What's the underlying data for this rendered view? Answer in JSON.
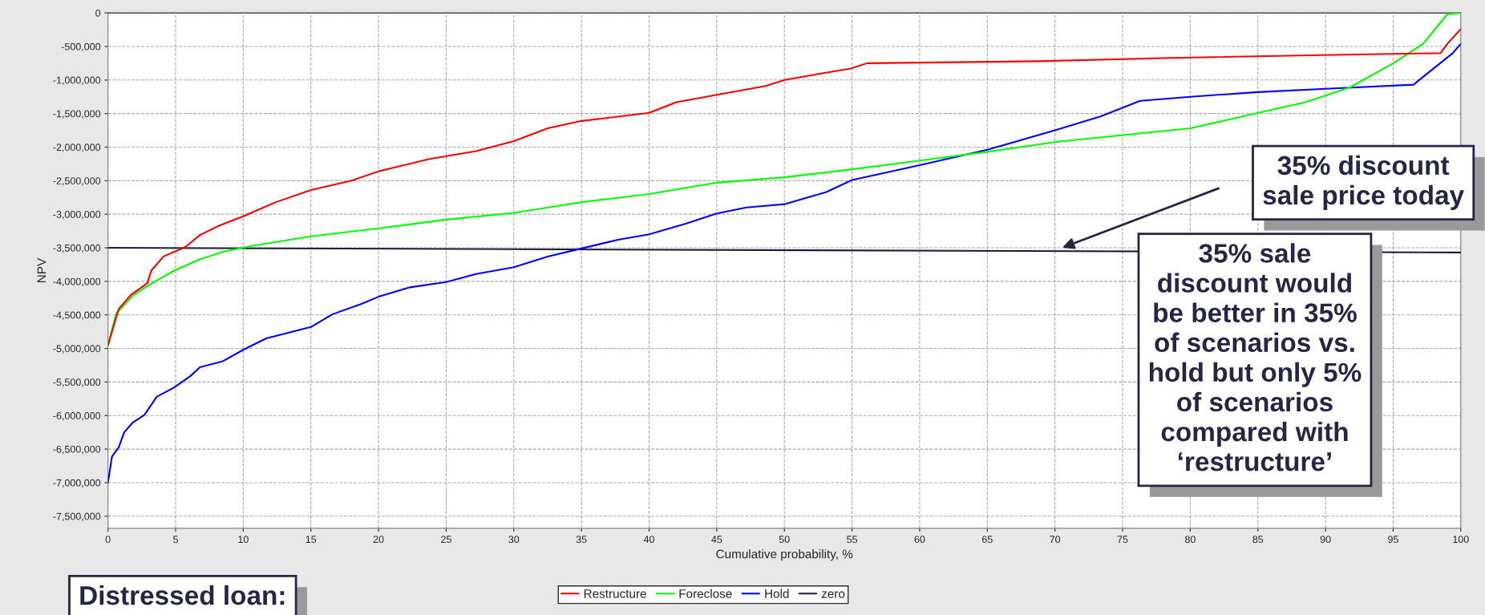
{
  "chart_data": {
    "type": "line",
    "xlabel": "Cumulative probability, %",
    "ylabel": "NPV",
    "xlim": [
      0,
      100
    ],
    "xticks": [
      0,
      5,
      10,
      15,
      20,
      25,
      30,
      35,
      40,
      45,
      50,
      55,
      60,
      65,
      70,
      75,
      80,
      85,
      90,
      95,
      100
    ],
    "ylim": [
      -7680000,
      0
    ],
    "yticks": [
      {
        "value": -7500000,
        "label": "-7,500,000"
      },
      {
        "value": -7000000,
        "label": "-7,000,000"
      },
      {
        "value": -6500000,
        "label": "-6,500,000"
      },
      {
        "value": -6000000,
        "label": "-6,000,000"
      },
      {
        "value": -5500000,
        "label": "-5,500,000"
      },
      {
        "value": -5000000,
        "label": "-5,000,000"
      },
      {
        "value": -4500000,
        "label": "-4,500,000"
      },
      {
        "value": -4000000,
        "label": "-4,000,000"
      },
      {
        "value": -3500000,
        "label": "-3,500,000"
      },
      {
        "value": -3000000,
        "label": "-3,000,000"
      },
      {
        "value": -2500000,
        "label": "-2,500,000"
      },
      {
        "value": -2000000,
        "label": "-2,000,000"
      },
      {
        "value": -1500000,
        "label": "-1,500,000"
      },
      {
        "value": -1000000,
        "label": "-1,000,000"
      },
      {
        "value": -500000,
        "label": "-500,000"
      },
      0
    ],
    "grid": true,
    "legend": "bottom",
    "line_style": "solid",
    "series": [
      {
        "name": "Restructure",
        "color": "#ff0000",
        "x": [
          0,
          0.8,
          1.7,
          2.9,
          3.2,
          4.1,
          5.7,
          6.8,
          8.2,
          10,
          12.4,
          15,
          18,
          20,
          23.7,
          27.2,
          30,
          32.5,
          35,
          40,
          42,
          45,
          48.6,
          50,
          52.5,
          54.9,
          56.1,
          68.7,
          78.5,
          92.1,
          98.5,
          99,
          100
        ],
        "values": [
          -4950000,
          -4410000,
          -4200000,
          -4030000,
          -3840000,
          -3630000,
          -3490000,
          -3310000,
          -3170000,
          -3030000,
          -2820000,
          -2640000,
          -2500000,
          -2360000,
          -2180000,
          -2060000,
          -1910000,
          -1720000,
          -1610000,
          -1490000,
          -1330000,
          -1220000,
          -1090000,
          -1000000,
          -910000,
          -830000,
          -750000,
          -720000,
          -670000,
          -620000,
          -600000,
          -460000,
          -240000
        ]
      },
      {
        "name": "Foreclose",
        "color": "#00ff00",
        "x": [
          0,
          0.6,
          1.9,
          3.3,
          4.9,
          6.8,
          8.5,
          10.7,
          15,
          20,
          25,
          30,
          35,
          40,
          45,
          50,
          55,
          60,
          65,
          70.2,
          80,
          85,
          88.5,
          91.8,
          95,
          97.2,
          99,
          100
        ],
        "values": [
          -4950000,
          -4480000,
          -4200000,
          -4020000,
          -3840000,
          -3670000,
          -3560000,
          -3470000,
          -3330000,
          -3210000,
          -3080000,
          -2980000,
          -2820000,
          -2700000,
          -2530000,
          -2450000,
          -2330000,
          -2200000,
          -2070000,
          -1920000,
          -1720000,
          -1490000,
          -1330000,
          -1110000,
          -750000,
          -460000,
          -20000,
          0
        ]
      },
      {
        "name": "Hold",
        "color": "#0000ff",
        "x": [
          0,
          0.3,
          0.8,
          1.2,
          1.8,
          2.7,
          3.6,
          4.9,
          6.1,
          6.8,
          8.5,
          10,
          11.7,
          15,
          16.6,
          18.7,
          20,
          22.3,
          25,
          27.2,
          30,
          32.5,
          35,
          37.7,
          40,
          42.7,
          45,
          47.2,
          50,
          53.1,
          55,
          60,
          65,
          70,
          73.4,
          76.3,
          80,
          85,
          90,
          96.5,
          97.6,
          99.4,
          100
        ],
        "values": [
          -7000000,
          -6610000,
          -6470000,
          -6250000,
          -6110000,
          -5990000,
          -5720000,
          -5580000,
          -5410000,
          -5280000,
          -5190000,
          -5020000,
          -4850000,
          -4680000,
          -4490000,
          -4340000,
          -4230000,
          -4090000,
          -4010000,
          -3890000,
          -3790000,
          -3630000,
          -3510000,
          -3380000,
          -3300000,
          -3140000,
          -2990000,
          -2900000,
          -2850000,
          -2670000,
          -2490000,
          -2270000,
          -2040000,
          -1750000,
          -1540000,
          -1310000,
          -1250000,
          -1180000,
          -1130000,
          -1070000,
          -890000,
          -600000,
          -460000
        ]
      },
      {
        "name": "zero",
        "color": "#1c1c3c",
        "x": [
          0,
          100
        ],
        "values": [
          -3500000,
          -3570000
        ]
      }
    ],
    "annotations": [
      "35% discount\nsale price today",
      "35% sale\ndiscount would\nbe better in 35%\nof scenarios vs.\nhold but only 5%\nof scenarios\ncompared with\n‘restructure’",
      "Distressed loan:"
    ]
  }
}
